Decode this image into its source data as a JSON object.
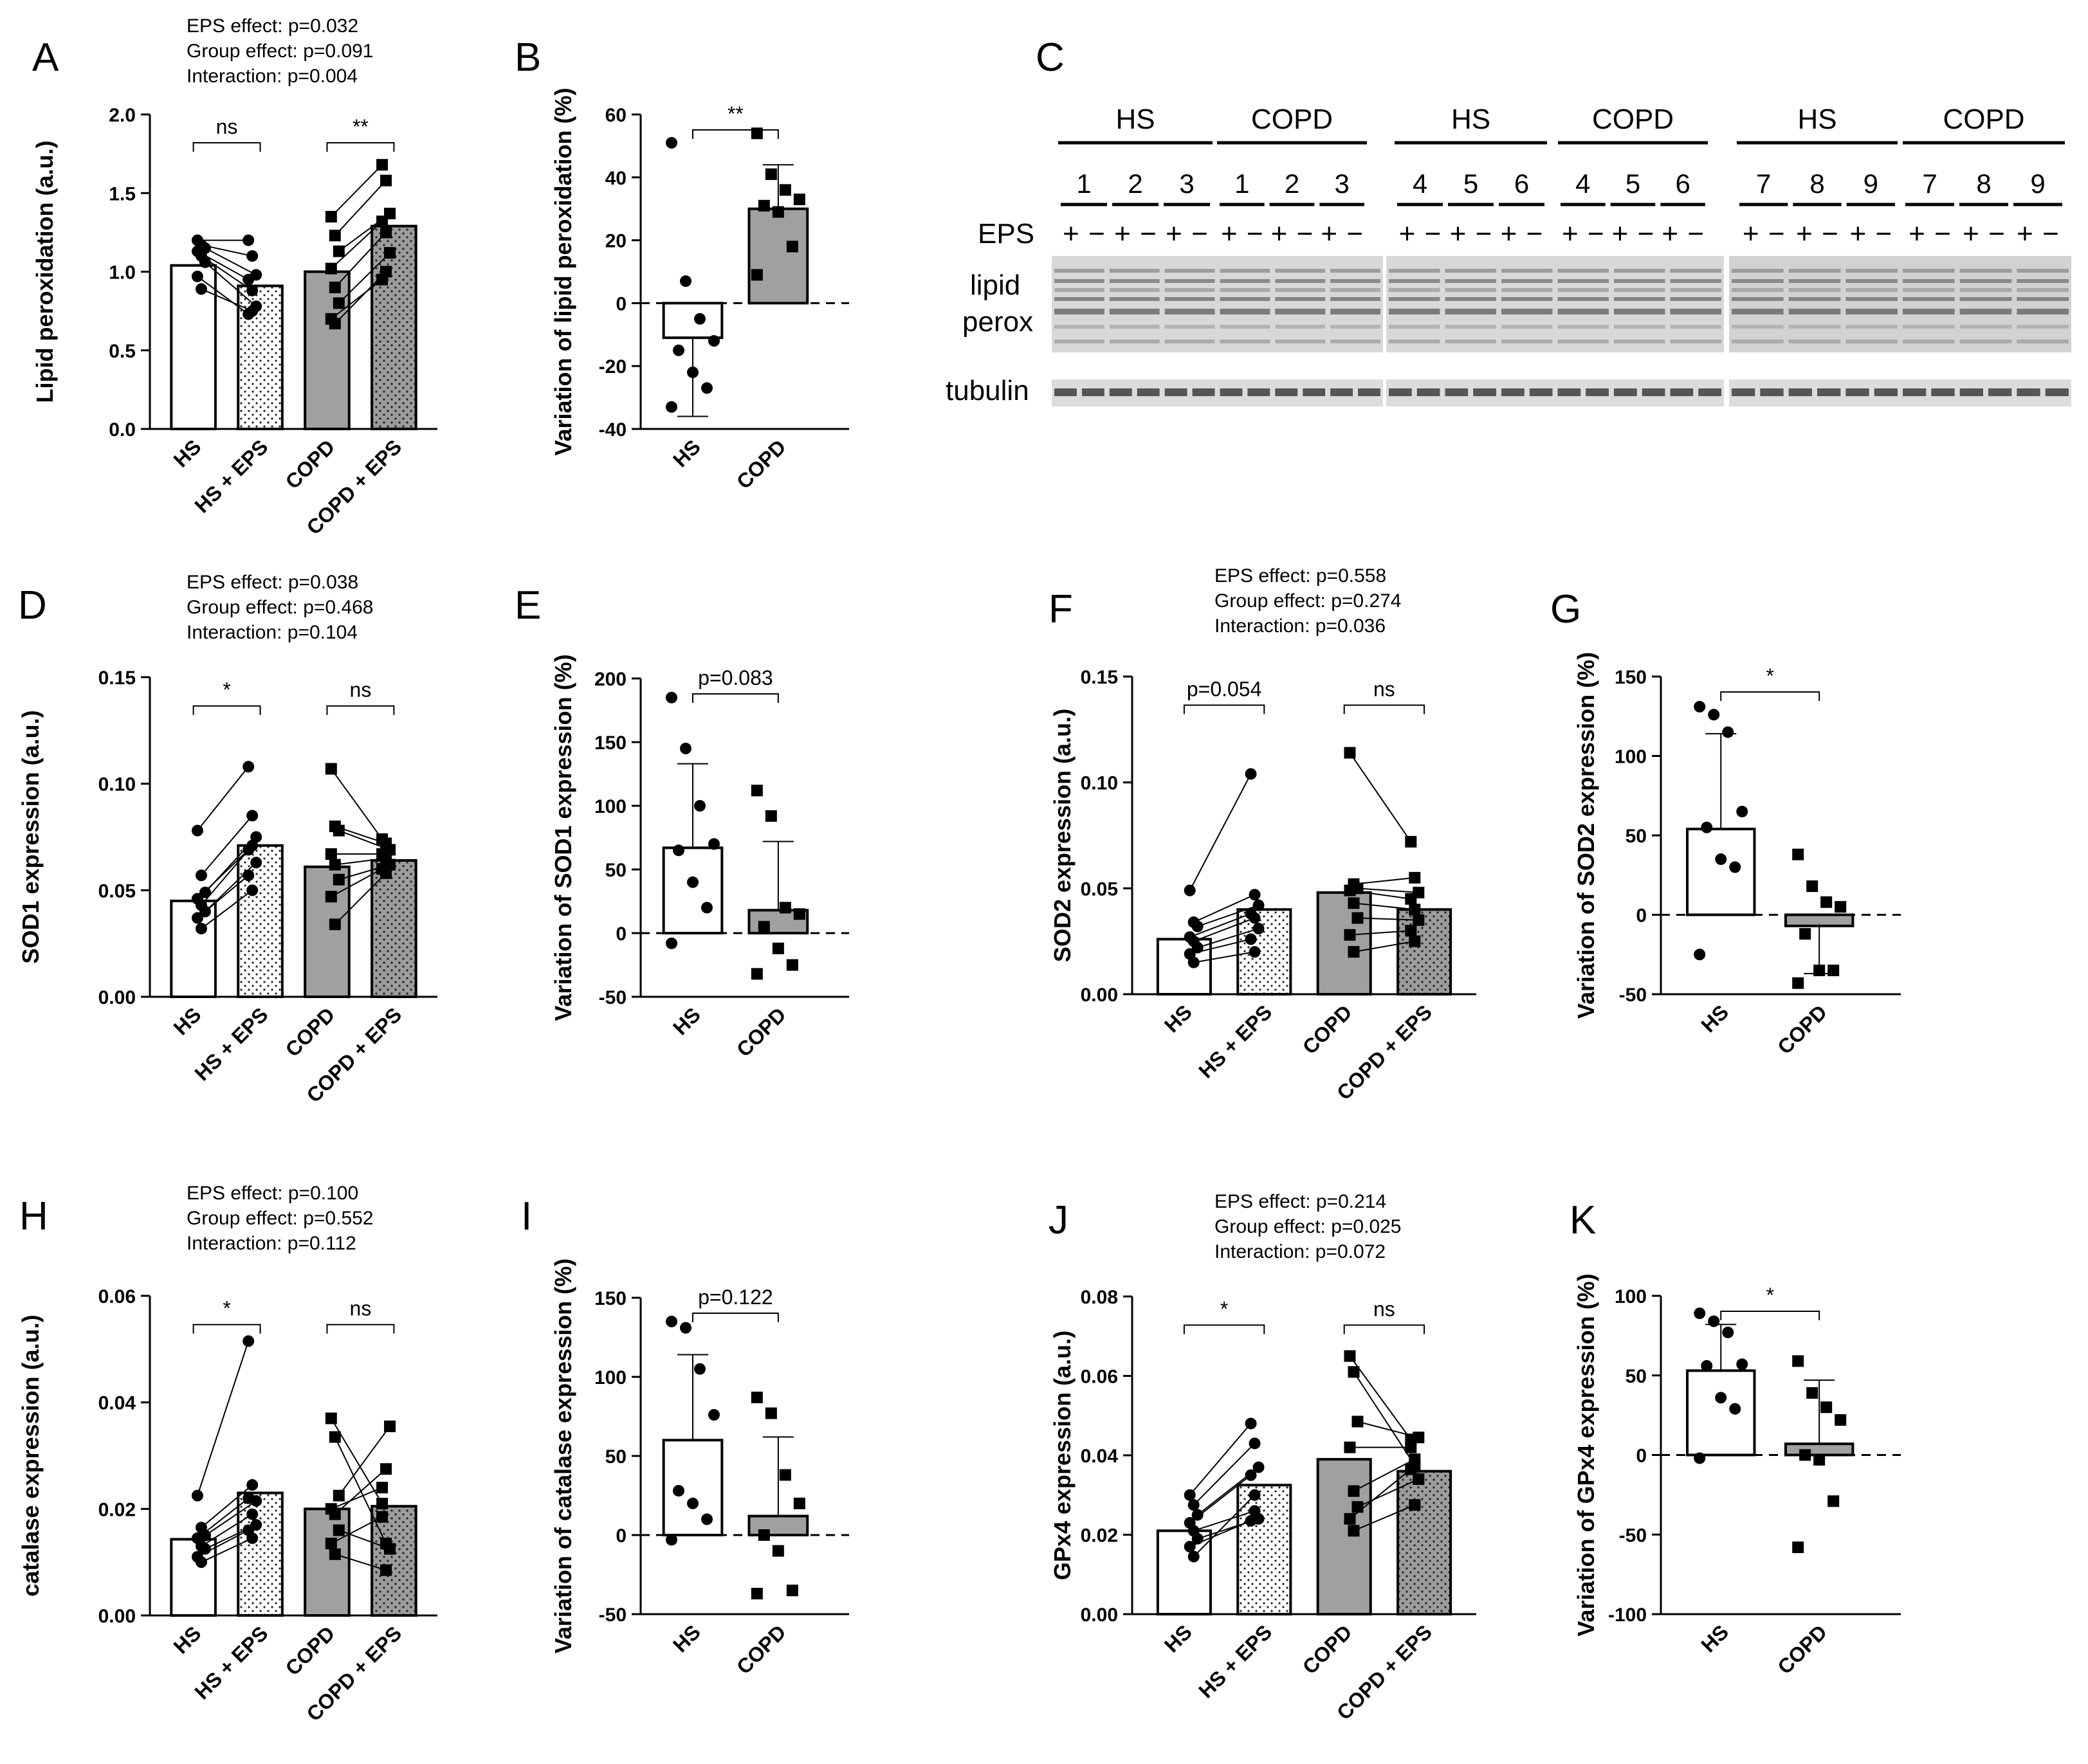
{
  "colors": {
    "grey_bar": "#a0a0a0",
    "white_bar": "#ffffff",
    "dotted_bar": "#ffffff",
    "dotted_grey_bar": "#9c9c9c",
    "ink": "#000000"
  },
  "chart_data": [
    {
      "id": "A",
      "label": "A",
      "type": "bar",
      "subtype": "paired",
      "ylabel": "Lipid peroxidation (a.u.)",
      "ylim": [
        0,
        2.0
      ],
      "yticks": [
        "0.0",
        "0.5",
        "1.0",
        "1.5",
        "2.0"
      ],
      "ytick_values": [
        0,
        0.5,
        1.0,
        1.5,
        2.0
      ],
      "categories": [
        "HS",
        "HS + EPS",
        "COPD",
        "COPD + EPS"
      ],
      "means": [
        1.04,
        0.91,
        1.0,
        1.29
      ],
      "stats": [
        "EPS effect: p=0.032",
        "Group effect: p=0.091",
        "Interaction: p=0.004"
      ],
      "comparisons": [
        {
          "pair": [
            0,
            1
          ],
          "label": "ns"
        },
        {
          "pair": [
            2,
            3
          ],
          "label": "**"
        }
      ],
      "pairs": [
        {
          "group": "HS",
          "before": [
            1.2,
            1.17,
            1.15,
            1.13,
            1.1,
            1.06,
            0.97,
            0.89
          ],
          "after": [
            1.2,
            1.1,
            0.98,
            0.95,
            0.88,
            0.78,
            0.73,
            0.75
          ]
        },
        {
          "group": "COPD",
          "before": [
            1.35,
            1.23,
            1.13,
            1.02,
            0.9,
            0.8,
            0.7,
            0.67
          ],
          "after": [
            1.68,
            1.58,
            1.37,
            1.32,
            1.25,
            1.12,
            0.95,
            1.0
          ]
        }
      ]
    },
    {
      "id": "B",
      "label": "B",
      "type": "bar",
      "subtype": "variation",
      "ylabel": "Variation of lipid peroxidation (%)",
      "ylim": [
        -40,
        60
      ],
      "yticks": [
        "-40",
        "-20",
        "0",
        "20",
        "40",
        "60"
      ],
      "ytick_values": [
        -40,
        -20,
        0,
        20,
        40,
        60
      ],
      "categories": [
        "HS",
        "COPD"
      ],
      "means": [
        -11,
        30
      ],
      "sd": [
        25,
        14
      ],
      "comparison": "**",
      "points": [
        [
          51,
          7,
          -5,
          -12,
          -15,
          -22,
          -27,
          -33
        ],
        [
          54,
          41,
          36,
          33,
          31,
          29,
          18,
          9
        ]
      ]
    },
    {
      "id": "D",
      "label": "D",
      "type": "bar",
      "subtype": "paired",
      "ylabel": "SOD1 expression (a.u.)",
      "ylim": [
        0,
        0.15
      ],
      "yticks": [
        "0.00",
        "0.05",
        "0.10",
        "0.15"
      ],
      "ytick_values": [
        0,
        0.05,
        0.1,
        0.15
      ],
      "categories": [
        "HS",
        "HS + EPS",
        "COPD",
        "COPD + EPS"
      ],
      "means": [
        0.045,
        0.071,
        0.061,
        0.064
      ],
      "stats": [
        "EPS effect: p=0.038",
        "Group effect: p=0.468",
        "Interaction: p=0.104"
      ],
      "comparisons": [
        {
          "pair": [
            0,
            1
          ],
          "label": "*"
        },
        {
          "pair": [
            2,
            3
          ],
          "label": "ns"
        }
      ],
      "pairs": [
        {
          "group": "HS",
          "before": [
            0.078,
            0.057,
            0.049,
            0.046,
            0.043,
            0.04,
            0.037,
            0.032
          ],
          "after": [
            0.108,
            0.085,
            0.075,
            0.069,
            0.071,
            0.063,
            0.057,
            0.05
          ]
        },
        {
          "group": "COPD",
          "before": [
            0.107,
            0.08,
            0.078,
            0.067,
            0.062,
            0.055,
            0.047,
            0.034
          ],
          "after": [
            0.074,
            0.072,
            0.069,
            0.067,
            0.065,
            0.062,
            0.06,
            0.058
          ]
        }
      ]
    },
    {
      "id": "E",
      "label": "E",
      "type": "bar",
      "subtype": "variation",
      "ylabel": "Variation of SOD1 expression (%)",
      "ylim": [
        -50,
        200
      ],
      "yticks": [
        "-50",
        "0",
        "50",
        "100",
        "150",
        "200"
      ],
      "ytick_values": [
        -50,
        0,
        50,
        100,
        150,
        200
      ],
      "categories": [
        "HS",
        "COPD"
      ],
      "means": [
        67,
        18
      ],
      "sd": [
        66,
        54
      ],
      "comparison": "p=0.083",
      "points": [
        [
          185,
          145,
          100,
          70,
          65,
          40,
          20,
          -8
        ],
        [
          112,
          92,
          20,
          15,
          5,
          -12,
          -25,
          -32
        ]
      ]
    },
    {
      "id": "F",
      "label": "F",
      "type": "bar",
      "subtype": "paired",
      "ylabel": "SOD2 expression (a.u.)",
      "ylim": [
        0,
        0.15
      ],
      "yticks": [
        "0.00",
        "0.05",
        "0.10",
        "0.15"
      ],
      "ytick_values": [
        0,
        0.05,
        0.1,
        0.15
      ],
      "categories": [
        "HS",
        "HS + EPS",
        "COPD",
        "COPD + EPS"
      ],
      "means": [
        0.026,
        0.04,
        0.048,
        0.04
      ],
      "stats": [
        "EPS effect: p=0.558",
        "Group effect: p=0.274",
        "Interaction: p=0.036"
      ],
      "comparisons": [
        {
          "pair": [
            0,
            1
          ],
          "label": "p=0.054"
        },
        {
          "pair": [
            2,
            3
          ],
          "label": "ns"
        }
      ],
      "pairs": [
        {
          "group": "HS",
          "before": [
            0.049,
            0.034,
            0.032,
            0.027,
            0.025,
            0.022,
            0.019,
            0.015
          ],
          "after": [
            0.104,
            0.047,
            0.042,
            0.038,
            0.036,
            0.031,
            0.026,
            0.02
          ]
        },
        {
          "group": "COPD",
          "before": [
            0.114,
            0.052,
            0.05,
            0.049,
            0.043,
            0.036,
            0.028,
            0.02
          ],
          "after": [
            0.072,
            0.055,
            0.048,
            0.045,
            0.04,
            0.035,
            0.03,
            0.025
          ]
        }
      ]
    },
    {
      "id": "G",
      "label": "G",
      "type": "bar",
      "subtype": "variation",
      "ylabel": "Variation of SOD2 expression (%)",
      "ylim": [
        -50,
        150
      ],
      "yticks": [
        "-50",
        "0",
        "50",
        "100",
        "150"
      ],
      "ytick_values": [
        -50,
        0,
        50,
        100,
        150
      ],
      "categories": [
        "HS",
        "COPD"
      ],
      "means": [
        54,
        -7
      ],
      "sd": [
        60,
        30
      ],
      "comparison": "*",
      "points": [
        [
          131,
          126,
          115,
          65,
          55,
          35,
          30,
          -25
        ],
        [
          38,
          18,
          8,
          5,
          -12,
          -35,
          -35,
          -43
        ]
      ]
    },
    {
      "id": "H",
      "label": "H",
      "type": "bar",
      "subtype": "paired",
      "ylabel": "catalase expression (a.u.)",
      "ylim": [
        0,
        0.06
      ],
      "yticks": [
        "0.00",
        "0.02",
        "0.04",
        "0.06"
      ],
      "ytick_values": [
        0,
        0.02,
        0.04,
        0.06
      ],
      "categories": [
        "HS",
        "HS + EPS",
        "COPD",
        "COPD + EPS"
      ],
      "means": [
        0.0143,
        0.023,
        0.02,
        0.0205
      ],
      "stats": [
        "EPS effect: p=0.100",
        "Group effect: p=0.552",
        "Interaction: p=0.112"
      ],
      "comparisons": [
        {
          "pair": [
            0,
            1
          ],
          "label": "*"
        },
        {
          "pair": [
            2,
            3
          ],
          "label": "ns"
        }
      ],
      "pairs": [
        {
          "group": "HS",
          "before": [
            0.0225,
            0.0165,
            0.015,
            0.0145,
            0.013,
            0.0125,
            0.011,
            0.01
          ],
          "after": [
            0.0515,
            0.0245,
            0.0215,
            0.022,
            0.019,
            0.017,
            0.016,
            0.0145
          ]
        },
        {
          "group": "COPD",
          "before": [
            0.037,
            0.0335,
            0.0225,
            0.02,
            0.019,
            0.016,
            0.0135,
            0.0115
          ],
          "after": [
            0.021,
            0.0135,
            0.0355,
            0.024,
            0.0275,
            0.0125,
            0.0185,
            0.0085
          ]
        }
      ]
    },
    {
      "id": "I",
      "label": "I",
      "type": "bar",
      "subtype": "variation",
      "ylabel": "Variation of catalase expression (%)",
      "ylim": [
        -50,
        150
      ],
      "yticks": [
        "-50",
        "0",
        "50",
        "100",
        "150"
      ],
      "ytick_values": [
        -50,
        0,
        50,
        100,
        150
      ],
      "categories": [
        "HS",
        "COPD"
      ],
      "means": [
        60,
        12
      ],
      "sd": [
        54,
        50
      ],
      "comparison": "p=0.122",
      "points": [
        [
          135,
          131,
          105,
          76,
          28,
          20,
          10,
          -3
        ],
        [
          87,
          77,
          38,
          20,
          0,
          -10,
          -35,
          -37
        ]
      ]
    },
    {
      "id": "J",
      "label": "J",
      "type": "bar",
      "subtype": "paired",
      "ylabel": "GPx4 expression (a.u.)",
      "ylim": [
        0,
        0.08
      ],
      "yticks": [
        "0.00",
        "0.02",
        "0.04",
        "0.06",
        "0.08"
      ],
      "ytick_values": [
        0,
        0.02,
        0.04,
        0.06,
        0.08
      ],
      "categories": [
        "HS",
        "HS + EPS",
        "COPD",
        "COPD + EPS"
      ],
      "means": [
        0.021,
        0.0325,
        0.039,
        0.036
      ],
      "stats": [
        "EPS effect: p=0.214",
        "Group effect: p=0.025",
        "Interaction: p=0.072"
      ],
      "comparisons": [
        {
          "pair": [
            0,
            1
          ],
          "label": "*"
        },
        {
          "pair": [
            2,
            3
          ],
          "label": "ns"
        }
      ],
      "pairs": [
        {
          "group": "HS",
          "before": [
            0.03,
            0.0275,
            0.025,
            0.023,
            0.021,
            0.019,
            0.017,
            0.0145
          ],
          "after": [
            0.048,
            0.043,
            0.037,
            0.035,
            0.026,
            0.024,
            0.0235,
            0.03
          ]
        },
        {
          "group": "COPD",
          "before": [
            0.065,
            0.061,
            0.0485,
            0.042,
            0.031,
            0.027,
            0.024,
            0.021
          ],
          "after": [
            0.044,
            0.0375,
            0.0445,
            0.042,
            0.039,
            0.034,
            0.0365,
            0.0275
          ]
        }
      ]
    },
    {
      "id": "K",
      "label": "K",
      "type": "bar",
      "subtype": "variation",
      "ylabel": "Variation of GPx4 expression (%)",
      "ylim": [
        -100,
        100
      ],
      "yticks": [
        "-100",
        "-50",
        "0",
        "50",
        "100"
      ],
      "ytick_values": [
        -100,
        -50,
        0,
        50,
        100
      ],
      "categories": [
        "HS",
        "COPD"
      ],
      "means": [
        53,
        7
      ],
      "sd": [
        29,
        40
      ],
      "comparison": "*",
      "points": [
        [
          89,
          84,
          77,
          57,
          56,
          36,
          29,
          -2
        ],
        [
          59,
          39,
          30,
          22,
          0,
          -3,
          -29,
          -58
        ]
      ]
    }
  ],
  "blot": {
    "label": "C",
    "groups": [
      "HS",
      "COPD",
      "HS",
      "COPD",
      "HS",
      "COPD"
    ],
    "subjects": [
      "1",
      "2",
      "3",
      "1",
      "2",
      "3",
      "4",
      "5",
      "6",
      "4",
      "5",
      "6",
      "7",
      "8",
      "9",
      "7",
      "8",
      "9"
    ],
    "eps_row_label": "EPS",
    "eps_signs": [
      "+",
      "−"
    ],
    "band_label_line1": "lipid",
    "band_label_line2": "perox",
    "tubulin_label": "tubulin"
  }
}
